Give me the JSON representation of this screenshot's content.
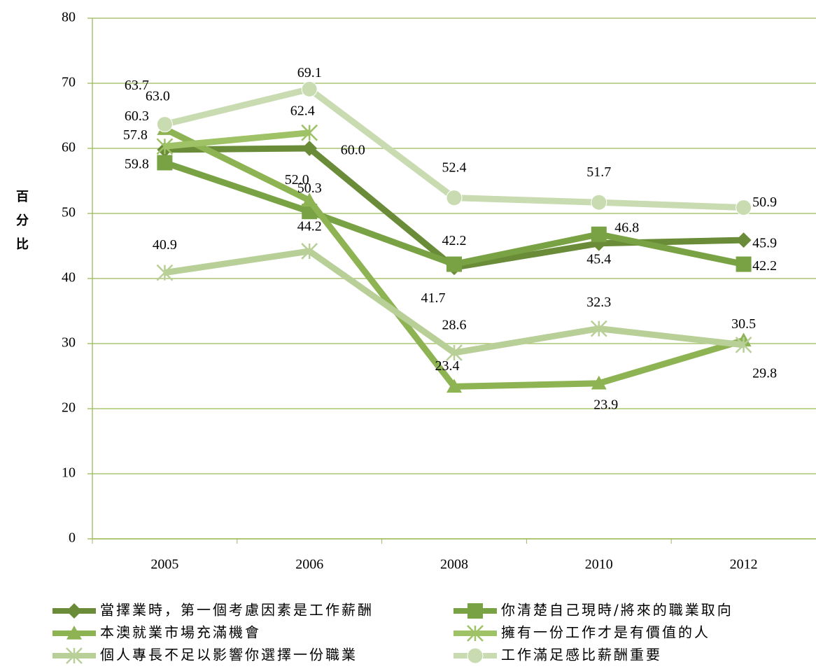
{
  "chart_data": {
    "type": "line",
    "y_label": "百分比",
    "categories": [
      "2005",
      "2006",
      "2008",
      "2010",
      "2012"
    ],
    "ylim": [
      0,
      80
    ],
    "yticks": [
      0,
      10,
      20,
      30,
      40,
      50,
      60,
      70,
      80
    ],
    "grid": true,
    "series": [
      {
        "name": "當擇業時，第一個考慮因素是工作薪酬",
        "color": "#6a8c38",
        "marker": "diamond",
        "values": [
          59.8,
          60.0,
          41.7,
          45.4,
          45.9
        ],
        "value_labels": [
          "59.8",
          "60.0",
          "41.7",
          "45.4",
          "45.9"
        ]
      },
      {
        "name": "你清楚自己現時/將來的職業取向",
        "color": "#78a243",
        "marker": "square",
        "values": [
          57.8,
          50.3,
          42.2,
          46.8,
          42.2
        ],
        "value_labels": [
          "57.8",
          "50.3",
          "42.2",
          "46.8",
          "42.2"
        ]
      },
      {
        "name": "本澳就業市場充滿機會",
        "color": "#8db352",
        "marker": "triangle",
        "values": [
          63.0,
          52.0,
          23.4,
          23.9,
          30.5
        ],
        "value_labels": [
          "63.0",
          "52.0",
          "23.4",
          "23.9",
          "30.5"
        ]
      },
      {
        "name": "擁有一份工作才是有價值的人",
        "color": "#9fc266",
        "marker": "x",
        "values": [
          60.3,
          62.4,
          null,
          null,
          null
        ],
        "value_labels": [
          "60.3",
          "62.4",
          null,
          null,
          null
        ]
      },
      {
        "name": "個人專長不足以影響你選擇一份職業",
        "color": "#b8cf98",
        "marker": "x",
        "values": [
          40.9,
          44.2,
          28.6,
          32.3,
          29.8
        ],
        "value_labels": [
          "40.9",
          "44.2",
          "28.6",
          "32.3",
          "29.8"
        ]
      },
      {
        "name": "工作滿足感比薪酬重要",
        "color": "#c9dbb1",
        "marker": "circle",
        "values": [
          63.7,
          69.1,
          52.4,
          51.7,
          50.9
        ],
        "value_labels": [
          "63.7",
          "69.1",
          "52.4",
          "51.7",
          "50.9"
        ]
      }
    ]
  }
}
